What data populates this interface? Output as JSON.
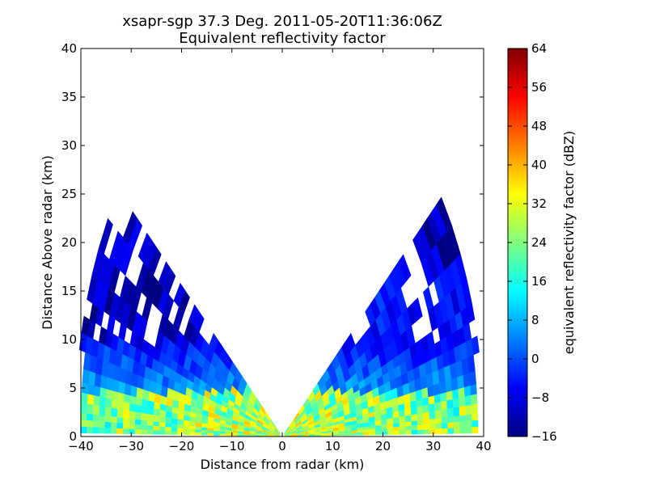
{
  "chart_data": {
    "type": "heatmap",
    "title_line1": "xsapr-sgp 37.3 Deg. 2011-05-20T11:36:06Z",
    "title_line2": "Equivalent reflectivity factor",
    "xlabel": "Distance from radar (km)",
    "ylabel": "Distance Above radar  (km)",
    "xlim": [
      -40,
      40
    ],
    "ylim": [
      0,
      40
    ],
    "x_ticks": [
      "−40",
      "−30",
      "−20",
      "−10",
      "0",
      "10",
      "20",
      "30",
      "40"
    ],
    "x_tick_values": [
      -40,
      -30,
      -20,
      -10,
      0,
      10,
      20,
      30,
      40
    ],
    "y_ticks": [
      "0",
      "5",
      "10",
      "15",
      "20",
      "25",
      "30",
      "35",
      "40"
    ],
    "y_tick_values": [
      0,
      5,
      10,
      15,
      20,
      25,
      30,
      35,
      40
    ],
    "colorbar": {
      "label": "equivalent reflectivity factor (dBZ)",
      "min": -16,
      "max": 64,
      "ticks": [
        "−16",
        "−8",
        "0",
        "8",
        "16",
        "24",
        "32",
        "40",
        "48",
        "56",
        "64"
      ],
      "tick_values": [
        -16,
        -8,
        0,
        8,
        16,
        24,
        32,
        40,
        48,
        56,
        64
      ],
      "colormap": [
        "#00007f",
        "#0000ff",
        "#007fff",
        "#00ffff",
        "#7fff7f",
        "#ffff00",
        "#ff7f00",
        "#ff0000",
        "#7f0000"
      ]
    },
    "grid": false,
    "legend": "colorbar-right",
    "data_summary": {
      "x_extent_km": [
        -39,
        38
      ],
      "max_height_km": 26,
      "low_band_dbz": [
        16,
        40
      ],
      "upper_band_dbz": [
        -16,
        8
      ]
    }
  }
}
